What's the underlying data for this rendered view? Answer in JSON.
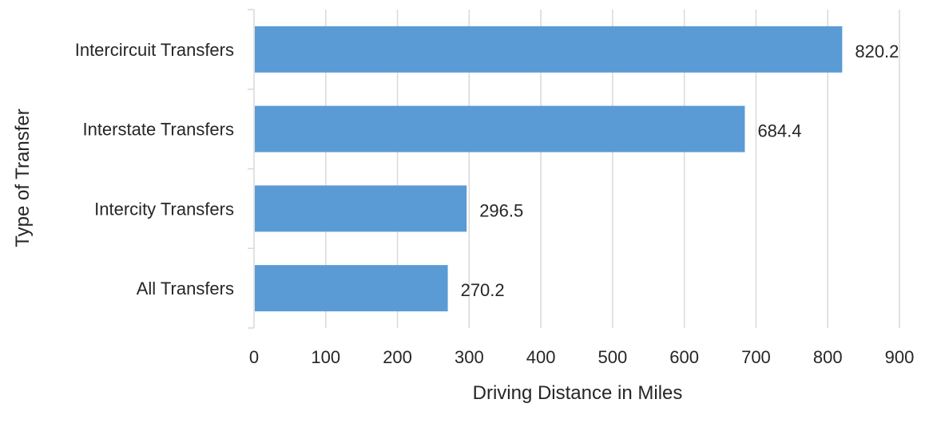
{
  "chart_data": {
    "type": "bar",
    "orientation": "horizontal",
    "categories": [
      "Intercircuit Transfers",
      "Interstate Transfers",
      "Intercity Transfers",
      "All Transfers"
    ],
    "values": [
      820.2,
      684.4,
      296.5,
      270.2
    ],
    "value_labels": [
      "820.2",
      "684.4",
      "296.5",
      "270.2"
    ],
    "xlabel": "Driving Distance in Miles",
    "ylabel": "Type of Transfer",
    "xlim": [
      0,
      900
    ],
    "xticks": [
      0,
      100,
      200,
      300,
      400,
      500,
      600,
      700,
      800,
      900
    ],
    "xtick_labels": [
      "0",
      "100",
      "200",
      "300",
      "400",
      "500",
      "600",
      "700",
      "800",
      "900"
    ],
    "grid": "vertical",
    "bar_color": "#5b9bd5",
    "grid_color": "#d9d9d9",
    "text_color": "#262626"
  }
}
